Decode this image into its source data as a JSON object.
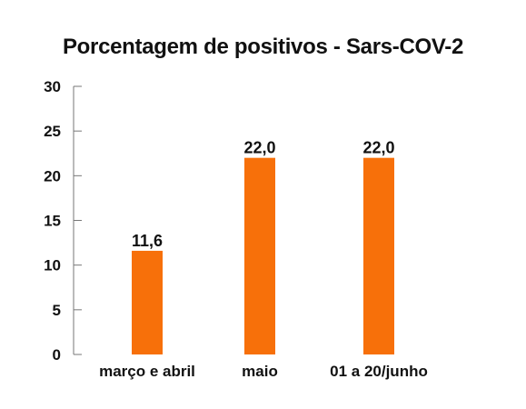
{
  "chart_data": {
    "type": "bar",
    "title": "Porcentagem de positivos - Sars-COV-2",
    "categories": [
      "março e abril",
      "maio",
      "01 a 20/junho"
    ],
    "values": [
      11.6,
      22.0,
      22.0
    ],
    "data_labels": [
      "11,6",
      "22,0",
      "22,0"
    ],
    "xlabel": "",
    "ylabel": "",
    "ylim": [
      0,
      30
    ],
    "yticks": [
      0,
      5,
      10,
      15,
      20,
      25,
      30
    ],
    "grid": false,
    "legend": "none",
    "bar_color": "#f7700a"
  }
}
